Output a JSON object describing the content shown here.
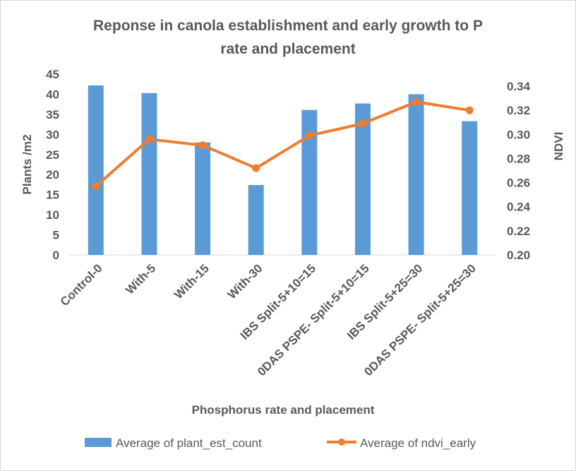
{
  "chart_data": {
    "type": "bar",
    "title_lines": [
      "Reponse in canola establishment  and early growth to P",
      "rate and placement"
    ],
    "xlabel": "Phosphorus rate and placement",
    "ylabel": "Plants /m2",
    "y2label": "NDVI",
    "categories": [
      "Control-0",
      "With-5",
      "With-15",
      "With-30",
      "IBS Split-5+10=15",
      "0DAS PSPE- Split-5+10=15",
      "IBS Split-5+25=30",
      "0DAS PSPE- Split-5+25=30"
    ],
    "series": [
      {
        "name": "Average of plant_est_count",
        "kind": "bar",
        "axis": "left",
        "color": "#5b9bd5",
        "values": [
          42.2,
          40.3,
          28.0,
          17.4,
          36.1,
          37.7,
          40.0,
          33.3
        ]
      },
      {
        "name": "Average of ndvi_early",
        "kind": "line",
        "axis": "right",
        "color": "#ed7d31",
        "values": [
          0.257,
          0.296,
          0.291,
          0.272,
          0.299,
          0.309,
          0.327,
          0.32
        ]
      }
    ],
    "ylim": [
      0,
      45
    ],
    "yticks": [
      "0",
      "5",
      "10",
      "15",
      "20",
      "25",
      "30",
      "35",
      "40",
      "45"
    ],
    "y2lim": [
      0.2,
      0.35
    ],
    "y2ticks": [
      "0.20",
      "0.22",
      "0.24",
      "0.26",
      "0.28",
      "0.30",
      "0.32",
      "0.34"
    ],
    "grid": false,
    "legend_position": "bottom"
  }
}
